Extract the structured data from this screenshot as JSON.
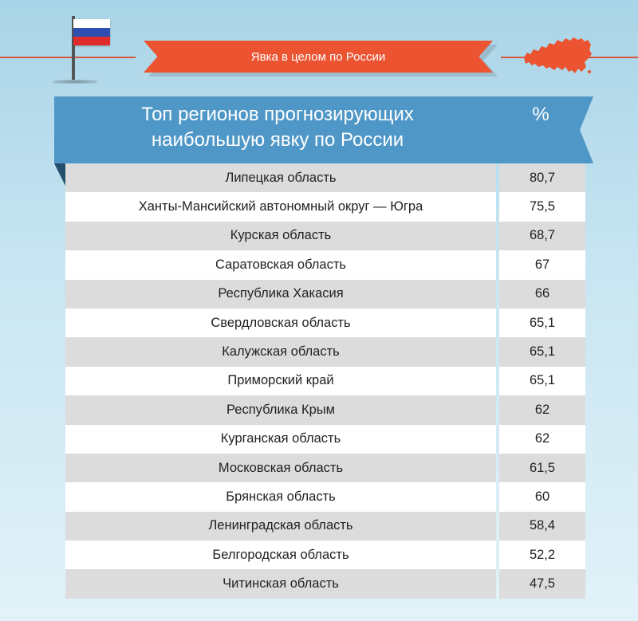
{
  "ribbon": {
    "text": "Явка в целом по России"
  },
  "header": {
    "title_line1": "Топ регионов прогнозирующих",
    "title_line2": "наибольшую явку по России",
    "percent_label": "%"
  },
  "colors": {
    "ribbon": "#ec5431",
    "banner": "#4f97c7",
    "map": "#ec5431",
    "row_shaded": "#dcdcdc",
    "row_plain": "#ffffff"
  },
  "icons": [
    "russian-flag-icon",
    "russia-map-icon"
  ],
  "rows": [
    {
      "region": "Липецкая область",
      "value": "80,7"
    },
    {
      "region": "Ханты-Мансийский автономный округ — Югра",
      "value": "75,5"
    },
    {
      "region": "Курская область",
      "value": "68,7"
    },
    {
      "region": "Саратовская область",
      "value": "67"
    },
    {
      "region": "Республика Хакасия",
      "value": "66"
    },
    {
      "region": "Свердловская область",
      "value": "65,1"
    },
    {
      "region": "Калужская область",
      "value": "65,1"
    },
    {
      "region": "Приморский край",
      "value": "65,1"
    },
    {
      "region": "Республика Крым",
      "value": "62"
    },
    {
      "region": "Курганская область",
      "value": "62"
    },
    {
      "region": "Московская область",
      "value": "61,5"
    },
    {
      "region": "Брянская область",
      "value": "60"
    },
    {
      "region": "Ленинградская область",
      "value": "58,4"
    },
    {
      "region": "Белгородская область",
      "value": "52,2"
    },
    {
      "region": "Читинская область",
      "value": "47,5"
    }
  ]
}
